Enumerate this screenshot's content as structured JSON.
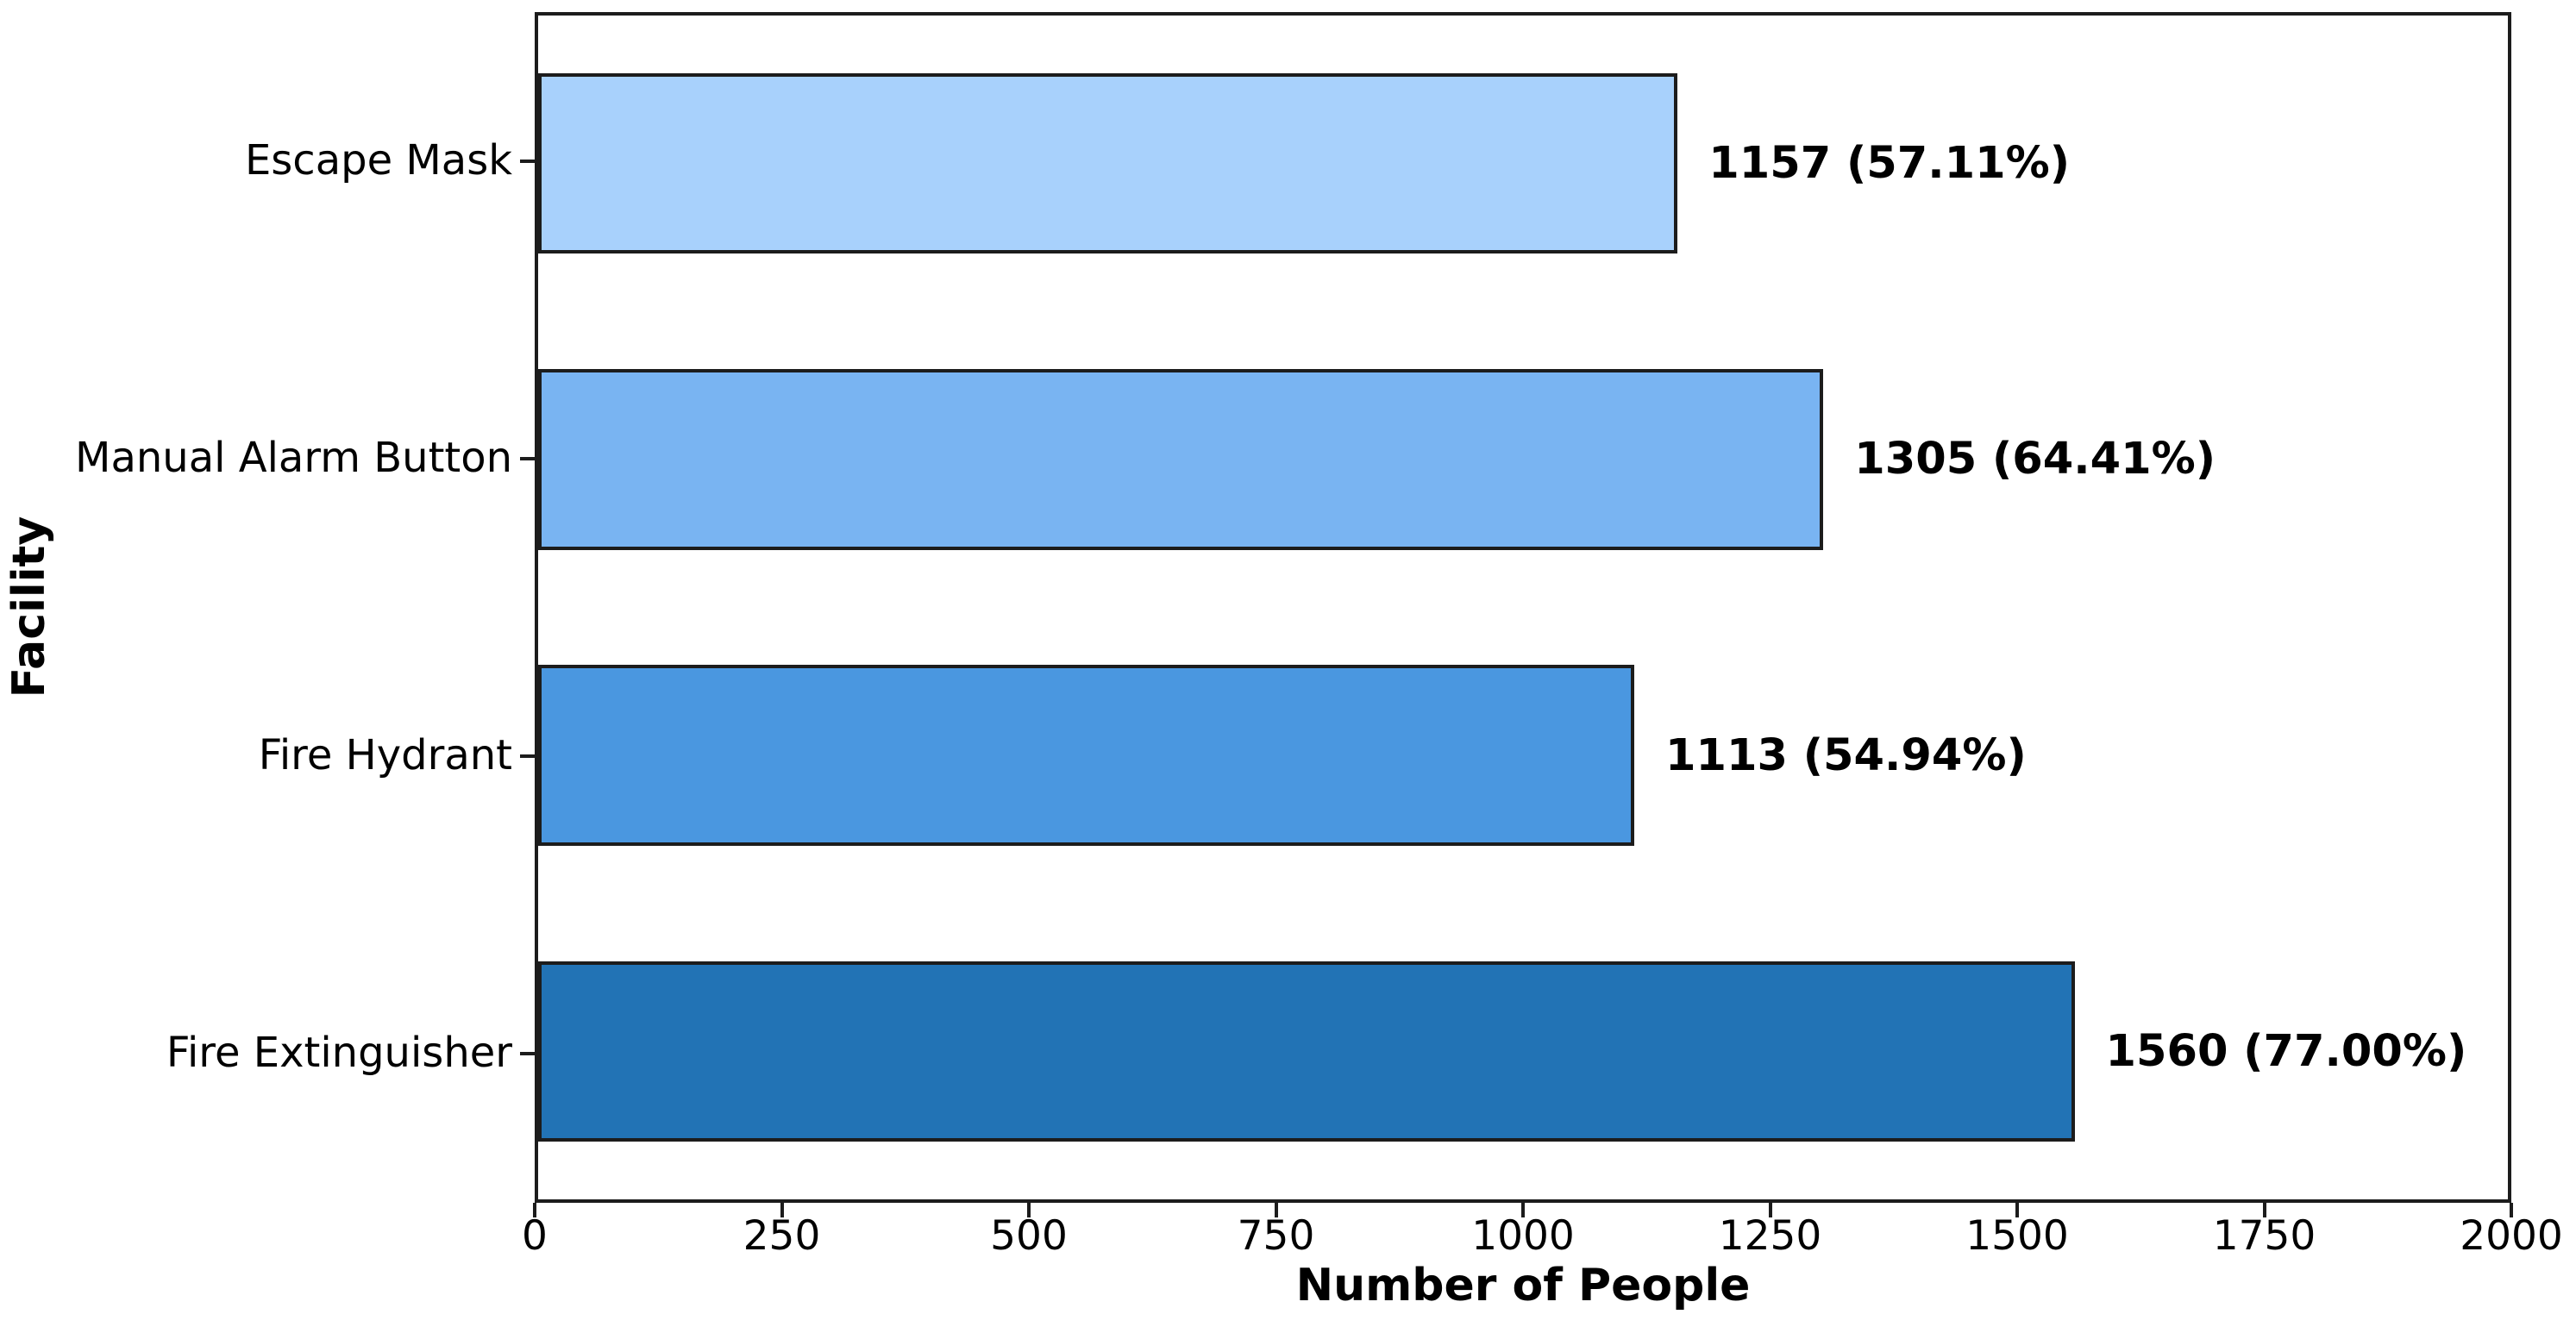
{
  "chart_data": {
    "type": "bar",
    "orientation": "horizontal",
    "title": "",
    "xlabel": "Number of People",
    "ylabel": "Facility",
    "categories": [
      "Escape Mask",
      "Manual Alarm Button",
      "Fire Hydrant",
      "Fire Extinguisher"
    ],
    "values": [
      1157,
      1305,
      1113,
      1560
    ],
    "percentages": [
      57.11,
      64.41,
      54.94,
      77.0
    ],
    "bar_labels": [
      "1157 (57.11%)",
      "1305 (64.41%)",
      "1113 (54.94%)",
      "1560 (77.00%)"
    ],
    "bar_colors": [
      "#A8D1FC",
      "#79B4F2",
      "#4A97E0",
      "#2273B5"
    ],
    "bar_edge_color": "#1c1c1c",
    "xlim": [
      0,
      2000
    ],
    "x_ticks": [
      0,
      250,
      500,
      750,
      1000,
      1250,
      1500,
      1750,
      2000
    ],
    "grid": false,
    "legend": null,
    "background_color": "#ffffff"
  }
}
